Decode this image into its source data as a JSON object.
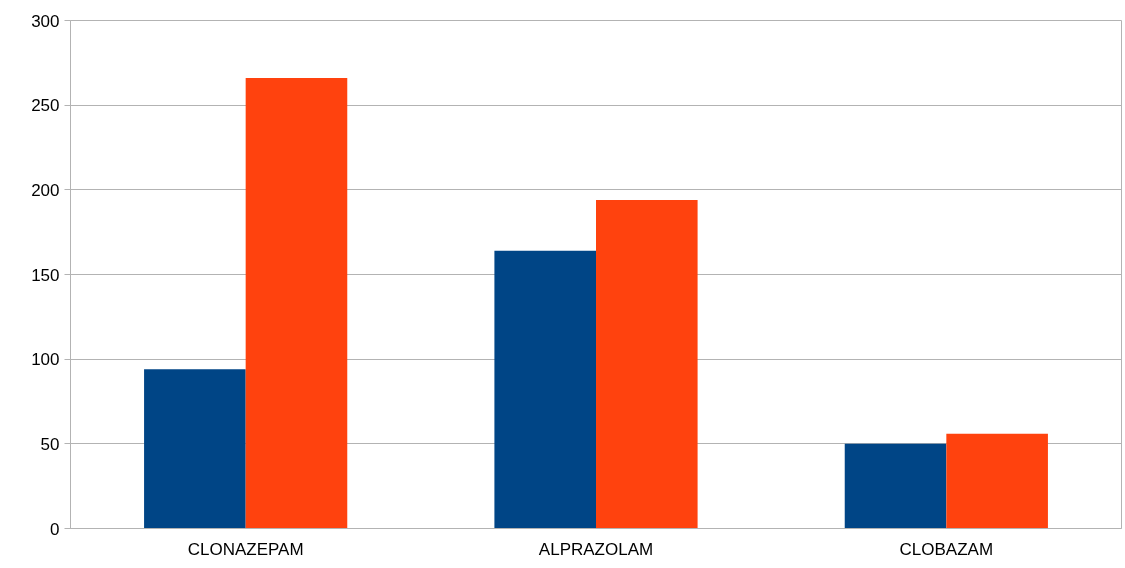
{
  "chart_data": {
    "type": "bar",
    "categories": [
      "CLONAZEPAM",
      "ALPRAZOLAM",
      "CLOBAZAM"
    ],
    "series": [
      {
        "color": "#004586",
        "values": [
          94,
          164,
          50
        ]
      },
      {
        "color": "#ff420e",
        "values": [
          266,
          194,
          56
        ]
      }
    ],
    "ylim": [
      0,
      300
    ],
    "yticks": [
      0,
      50,
      100,
      150,
      200,
      250,
      300
    ],
    "grid": "y"
  }
}
